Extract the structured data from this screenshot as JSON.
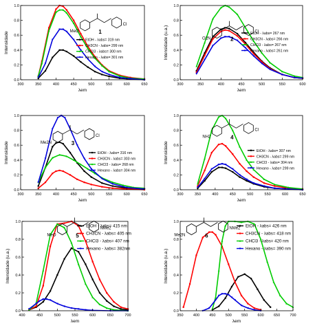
{
  "chart_data": [
    {
      "type": "line",
      "panel": "1",
      "ylabel": "Intensidade",
      "xlabel": "λem",
      "xlim": [
        300,
        650
      ],
      "ylim": [
        0,
        1.0
      ],
      "xticks": [
        300,
        350,
        400,
        450,
        500,
        550,
        600,
        650
      ],
      "yticks": [
        0.0,
        0.2,
        0.4,
        0.6,
        0.8,
        1.0
      ],
      "legend_position": "middle-right",
      "series": [
        {
          "name": "EtOH - λabs= 319 nm",
          "color": "#000000",
          "x": [
            350,
            370,
            390,
            410,
            420,
            430,
            450,
            470,
            490,
            510,
            530,
            550,
            580,
            610,
            650
          ],
          "y": [
            0.02,
            0.12,
            0.3,
            0.4,
            0.4,
            0.38,
            0.32,
            0.24,
            0.17,
            0.11,
            0.07,
            0.045,
            0.02,
            0.01,
            0.0
          ]
        },
        {
          "name": "CH3CN - λabs= 299 nm",
          "color": "#ff0000",
          "x": [
            350,
            360,
            380,
            400,
            410,
            420,
            430,
            450,
            470,
            490,
            510,
            530,
            550,
            580,
            610,
            650
          ],
          "y": [
            0.05,
            0.25,
            0.7,
            0.95,
            1.0,
            0.99,
            0.94,
            0.8,
            0.62,
            0.45,
            0.31,
            0.2,
            0.12,
            0.06,
            0.03,
            0.01
          ]
        },
        {
          "name": "CHCl3 - λabs= 300 nm",
          "color": "#00cc00",
          "x": [
            350,
            360,
            380,
            400,
            410,
            420,
            430,
            450,
            470,
            490,
            510,
            530,
            550,
            580,
            610,
            650
          ],
          "y": [
            0.05,
            0.22,
            0.66,
            0.91,
            0.94,
            0.94,
            0.9,
            0.76,
            0.58,
            0.42,
            0.29,
            0.19,
            0.11,
            0.05,
            0.02,
            0.01
          ]
        },
        {
          "name": "Hexano - λabs= 301 nm",
          "color": "#0000dd",
          "x": [
            350,
            370,
            390,
            410,
            420,
            430,
            450,
            470,
            490,
            510,
            530,
            550,
            580,
            610,
            650
          ],
          "y": [
            0.03,
            0.22,
            0.54,
            0.68,
            0.68,
            0.65,
            0.54,
            0.4,
            0.28,
            0.18,
            0.11,
            0.07,
            0.03,
            0.015,
            0.0
          ]
        }
      ]
    },
    {
      "type": "line",
      "panel": "2",
      "ylabel": "Intensidade (u.a.)",
      "xlabel": "λem",
      "xlim": [
        300,
        600
      ],
      "ylim": [
        0,
        1.0
      ],
      "xticks": [
        300,
        350,
        400,
        450,
        500,
        550,
        600
      ],
      "yticks": [
        0.0,
        0.2,
        0.4,
        0.6,
        0.8,
        1.0
      ],
      "legend_position": "middle-right",
      "series": [
        {
          "name": "EtOH - λabs= 267 nm",
          "color": "#000000",
          "x": [
            340,
            360,
            380,
            400,
            410,
            420,
            440,
            460,
            480,
            500,
            520,
            550,
            580,
            600
          ],
          "y": [
            0.12,
            0.36,
            0.58,
            0.68,
            0.7,
            0.69,
            0.62,
            0.5,
            0.37,
            0.25,
            0.16,
            0.07,
            0.03,
            0.02
          ]
        },
        {
          "name": "CH3CN - λabs= 266 nm",
          "color": "#ff0000",
          "x": [
            340,
            360,
            380,
            400,
            410,
            420,
            440,
            460,
            480,
            500,
            520,
            550,
            580,
            600
          ],
          "y": [
            0.1,
            0.33,
            0.55,
            0.65,
            0.67,
            0.66,
            0.59,
            0.48,
            0.35,
            0.24,
            0.15,
            0.07,
            0.03,
            0.02
          ]
        },
        {
          "name": "CHCl3 - λabs= 267 nm",
          "color": "#00cc00",
          "x": [
            340,
            360,
            380,
            400,
            410,
            420,
            440,
            460,
            480,
            500,
            520,
            550,
            580,
            600
          ],
          "y": [
            0.18,
            0.5,
            0.82,
            0.97,
            1.0,
            0.98,
            0.88,
            0.7,
            0.52,
            0.36,
            0.23,
            0.11,
            0.05,
            0.03
          ]
        },
        {
          "name": "Hexano - λabs= 261 nm",
          "color": "#0000dd",
          "x": [
            340,
            360,
            380,
            400,
            410,
            420,
            440,
            460,
            480,
            500,
            520,
            550,
            580,
            600
          ],
          "y": [
            0.08,
            0.27,
            0.46,
            0.56,
            0.58,
            0.58,
            0.53,
            0.43,
            0.32,
            0.22,
            0.14,
            0.07,
            0.03,
            0.02
          ]
        }
      ]
    },
    {
      "type": "line",
      "panel": "3",
      "ylabel": "Intensidade",
      "xlabel": "λem",
      "xlim": [
        300,
        650
      ],
      "ylim": [
        0,
        1.0
      ],
      "xticks": [
        300,
        350,
        400,
        450,
        500,
        550,
        600,
        650
      ],
      "yticks": [
        0.0,
        0.2,
        0.4,
        0.6,
        0.8,
        1.0
      ],
      "legend_position": "middle-right",
      "series": [
        {
          "name": "EtOH - λabs= 316 nm",
          "color": "#000000",
          "x": [
            350,
            370,
            390,
            400,
            410,
            420,
            440,
            460,
            480,
            500,
            530,
            560,
            600,
            650
          ],
          "y": [
            0.05,
            0.3,
            0.58,
            0.63,
            0.64,
            0.62,
            0.5,
            0.36,
            0.25,
            0.17,
            0.09,
            0.05,
            0.02,
            0.01
          ]
        },
        {
          "name": "CH3CN - λabs= 303 nm",
          "color": "#ff0000",
          "x": [
            350,
            370,
            390,
            400,
            410,
            420,
            440,
            460,
            480,
            500,
            530,
            560,
            600,
            650
          ],
          "y": [
            0.02,
            0.1,
            0.22,
            0.25,
            0.26,
            0.25,
            0.2,
            0.14,
            0.1,
            0.07,
            0.04,
            0.02,
            0.01,
            0.0
          ]
        },
        {
          "name": "CHCl3 - λabs= 268 nm",
          "color": "#00cc00",
          "x": [
            350,
            370,
            390,
            410,
            430,
            450,
            470,
            490,
            510,
            530,
            560,
            590,
            620,
            650
          ],
          "y": [
            0.1,
            0.3,
            0.43,
            0.47,
            0.45,
            0.4,
            0.34,
            0.28,
            0.22,
            0.16,
            0.1,
            0.06,
            0.03,
            0.02
          ]
        },
        {
          "name": "Hexano - λabs= 304 nm",
          "color": "#0000dd",
          "x": [
            350,
            370,
            390,
            405,
            415,
            425,
            440,
            460,
            480,
            500,
            530,
            560,
            600,
            650
          ],
          "y": [
            0.1,
            0.42,
            0.82,
            0.97,
            1.0,
            0.97,
            0.82,
            0.6,
            0.42,
            0.28,
            0.15,
            0.08,
            0.03,
            0.01
          ]
        }
      ]
    },
    {
      "type": "line",
      "panel": "4",
      "ylabel": "Intensidade",
      "xlabel": "λem",
      "xlim": [
        300,
        650
      ],
      "ylim": [
        0,
        1.0
      ],
      "xticks": [
        300,
        350,
        400,
        450,
        500,
        550,
        600,
        650
      ],
      "yticks": [
        0.0,
        0.2,
        0.4,
        0.6,
        0.8,
        1.0
      ],
      "legend_position": "middle-right",
      "series": [
        {
          "name": "EtOH - λabs= 307 nm",
          "color": "#000000",
          "x": [
            350,
            370,
            390,
            410,
            420,
            430,
            450,
            470,
            490,
            510,
            540,
            570,
            610,
            650
          ],
          "y": [
            0.02,
            0.12,
            0.24,
            0.3,
            0.3,
            0.29,
            0.24,
            0.17,
            0.12,
            0.08,
            0.04,
            0.02,
            0.01,
            0.0
          ]
        },
        {
          "name": "CH3CN - λabs= 299 nm",
          "color": "#ff0000",
          "x": [
            350,
            370,
            390,
            410,
            420,
            430,
            450,
            470,
            490,
            510,
            540,
            570,
            610,
            650
          ],
          "y": [
            0.05,
            0.26,
            0.5,
            0.61,
            0.62,
            0.59,
            0.48,
            0.35,
            0.25,
            0.17,
            0.09,
            0.05,
            0.02,
            0.01
          ]
        },
        {
          "name": "CHCl3 - λabs= 304 nm",
          "color": "#00cc00",
          "x": [
            350,
            370,
            390,
            410,
            420,
            430,
            450,
            470,
            490,
            510,
            540,
            570,
            610,
            650
          ],
          "y": [
            0.08,
            0.42,
            0.8,
            0.98,
            1.0,
            0.96,
            0.8,
            0.58,
            0.4,
            0.27,
            0.14,
            0.07,
            0.03,
            0.01
          ]
        },
        {
          "name": "Hexano - λabs= 299 nm",
          "color": "#0000dd",
          "x": [
            350,
            370,
            390,
            410,
            420,
            430,
            450,
            470,
            490,
            510,
            540,
            570,
            610,
            650
          ],
          "y": [
            0.03,
            0.15,
            0.28,
            0.34,
            0.35,
            0.34,
            0.28,
            0.2,
            0.14,
            0.09,
            0.05,
            0.02,
            0.01,
            0.0
          ]
        }
      ]
    },
    {
      "type": "line",
      "panel": "5",
      "ylabel": "Intensidade (u.a.)",
      "xlabel": "λem",
      "xlim": [
        400,
        700
      ],
      "ylim": [
        0,
        1.0
      ],
      "xticks": [
        400,
        450,
        500,
        550,
        600,
        650,
        700
      ],
      "yticks": [
        0.0,
        0.2,
        0.4,
        0.6,
        0.8,
        1.0
      ],
      "legend_position": "top-right",
      "series": [
        {
          "name": "EtOH - λabs= 415 nm",
          "color": "#000000",
          "x": [
            420,
            440,
            460,
            480,
            500,
            520,
            540,
            560,
            580,
            600,
            620,
            640,
            660,
            680,
            700
          ],
          "y": [
            0.01,
            0.04,
            0.1,
            0.22,
            0.4,
            0.58,
            0.7,
            0.66,
            0.52,
            0.35,
            0.2,
            0.11,
            0.05,
            0.02,
            0.01
          ]
        },
        {
          "name": "CH3CN - λabs= 405 nm",
          "color": "#ff0000",
          "x": [
            420,
            440,
            460,
            480,
            500,
            520,
            540,
            560,
            580,
            600,
            620,
            640,
            660,
            680,
            700
          ],
          "y": [
            0.01,
            0.05,
            0.28,
            0.72,
            0.97,
            0.98,
            1.0,
            0.95,
            0.78,
            0.55,
            0.35,
            0.2,
            0.1,
            0.04,
            0.02
          ]
        },
        {
          "name": "CHCl3 - λabs= 407 nm",
          "color": "#00cc00",
          "x": [
            420,
            440,
            460,
            480,
            500,
            520,
            540,
            560,
            580,
            600,
            620,
            640,
            660,
            680,
            700
          ],
          "y": [
            0.01,
            0.08,
            0.45,
            0.85,
            0.97,
            0.93,
            0.76,
            0.52,
            0.3,
            0.15,
            0.07,
            0.03,
            0.01,
            0.005,
            0.0
          ]
        },
        {
          "name": "Hexano - λabs= 382nm",
          "color": "#0000dd",
          "x": [
            420,
            440,
            450,
            460,
            470,
            480,
            500,
            520,
            540,
            560,
            580,
            600,
            650,
            700
          ],
          "y": [
            0.02,
            0.08,
            0.11,
            0.13,
            0.13,
            0.12,
            0.08,
            0.05,
            0.03,
            0.02,
            0.01,
            0.005,
            0.0,
            0.0
          ]
        }
      ]
    },
    {
      "type": "line",
      "panel": "6",
      "ylabel": "Intensidade (u.a.)",
      "xlabel": "λem",
      "xlim": [
        350,
        700
      ],
      "ylim": [
        0,
        1.0
      ],
      "xticks": [
        350,
        400,
        450,
        500,
        550,
        600,
        650,
        700
      ],
      "yticks": [
        0.0,
        0.2,
        0.4,
        0.6,
        0.8,
        1.0
      ],
      "legend_position": "top-right",
      "series": [
        {
          "name": "EtOH - λabs= 426 nm",
          "color": "#000000",
          "x": [
            450,
            470,
            490,
            510,
            530,
            550,
            570,
            590,
            610,
            630
          ],
          "y": [
            0.01,
            0.05,
            0.14,
            0.27,
            0.38,
            0.41,
            0.36,
            0.24,
            0.12,
            0.04
          ]
        },
        {
          "name": "CH3CN - λabs= 418 nm",
          "color": "#ff0000",
          "x": [
            360,
            380,
            400,
            420,
            440,
            450,
            460,
            480,
            500,
            520,
            540,
            560,
            580,
            600
          ],
          "y": [
            0.04,
            0.3,
            0.62,
            0.82,
            0.88,
            0.88,
            0.85,
            0.72,
            0.52,
            0.32,
            0.17,
            0.08,
            0.03,
            0.01
          ]
        },
        {
          "name": "CHCl3 - λabs= 420 nm",
          "color": "#00cc00",
          "x": [
            450,
            460,
            470,
            480,
            490,
            500,
            520,
            540,
            560,
            580,
            600,
            620,
            640,
            660,
            680,
            700
          ],
          "y": [
            0.02,
            0.15,
            0.45,
            0.78,
            0.95,
            1.0,
            1.0,
            0.99,
            1.0,
            0.97,
            0.8,
            0.55,
            0.32,
            0.17,
            0.08,
            0.04
          ]
        },
        {
          "name": "Hexano - λabs= 390 nm",
          "color": "#0000dd",
          "x": [
            420,
            440,
            460,
            470,
            480,
            490,
            500,
            510,
            520,
            540,
            560,
            580,
            600
          ],
          "y": [
            0.0,
            0.03,
            0.12,
            0.17,
            0.19,
            0.19,
            0.18,
            0.15,
            0.12,
            0.06,
            0.03,
            0.01,
            0.0
          ]
        }
      ]
    }
  ],
  "molecules": [
    {
      "number": "1",
      "substituent": "MeO",
      "right": "Cl"
    },
    {
      "number": "2",
      "substituent": "O2N",
      "right": "Cl"
    },
    {
      "number": "3",
      "substituent": "Me2N",
      "right": "Cl"
    },
    {
      "number": "4",
      "substituent": "NH2",
      "right": "Cl"
    },
    {
      "number": "5",
      "substituent": "MeO",
      "right": "NMe2"
    },
    {
      "number": "6",
      "substituent": "Me2N",
      "right": "NMe2"
    }
  ]
}
